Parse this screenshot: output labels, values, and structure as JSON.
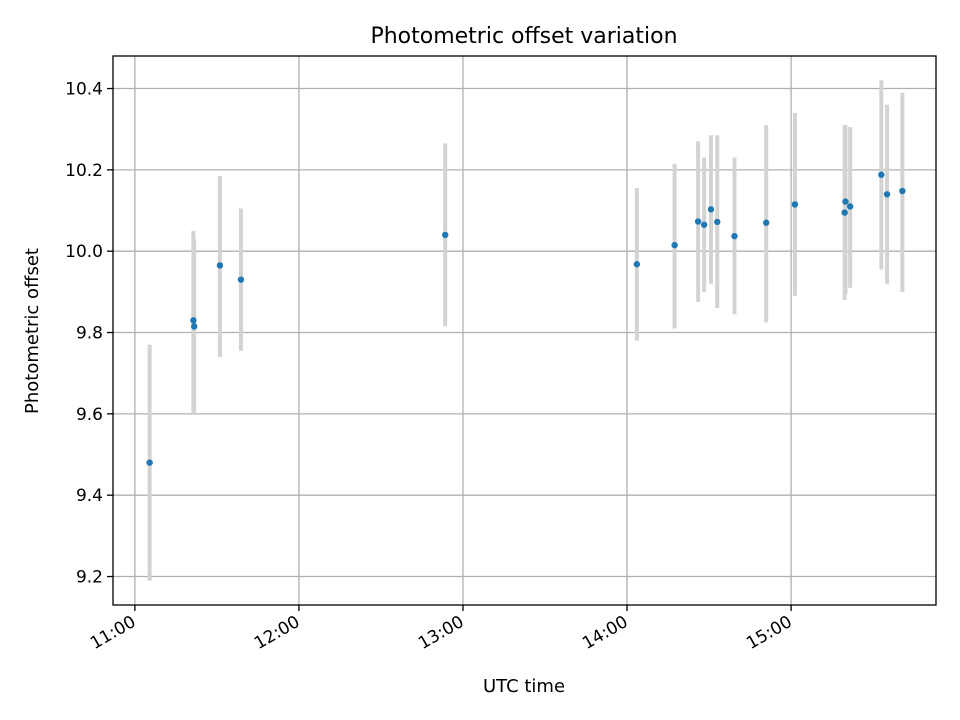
{
  "chart_data": {
    "type": "scatter",
    "title": "Photometric offset variation",
    "xlabel": "UTC time",
    "ylabel": "Photometric offset",
    "xlim": [
      "10:52",
      "15:53"
    ],
    "ylim": [
      9.13,
      10.48
    ],
    "x_ticks": [
      "11:00",
      "12:00",
      "13:00",
      "14:00",
      "15:00"
    ],
    "y_ticks": [
      9.2,
      9.4,
      9.6,
      9.8,
      10.0,
      10.2,
      10.4
    ],
    "grid": true,
    "legend": "none",
    "point_color": "#1f77b4",
    "errorbar_color": "#d3d3d3",
    "points": [
      {
        "x": "11:05.4",
        "y": 9.48,
        "ylo": 9.19,
        "yhi": 9.77
      },
      {
        "x": "11:21.4",
        "y": 9.83,
        "ylo": 9.6,
        "yhi": 10.05
      },
      {
        "x": "11:21.7",
        "y": 9.815,
        "ylo": 9.6,
        "yhi": 10.03
      },
      {
        "x": "11:31.1",
        "y": 9.965,
        "ylo": 9.74,
        "yhi": 10.185
      },
      {
        "x": "11:38.8",
        "y": 9.93,
        "ylo": 9.755,
        "yhi": 10.105
      },
      {
        "x": "12:53.5",
        "y": 10.04,
        "ylo": 9.815,
        "yhi": 10.265
      },
      {
        "x": "14:03.6",
        "y": 9.968,
        "ylo": 9.78,
        "yhi": 10.155
      },
      {
        "x": "14:17.4",
        "y": 10.015,
        "ylo": 9.81,
        "yhi": 10.215
      },
      {
        "x": "14:26.0",
        "y": 10.073,
        "ylo": 9.875,
        "yhi": 10.27
      },
      {
        "x": "14:28.2",
        "y": 10.065,
        "ylo": 9.9,
        "yhi": 10.23
      },
      {
        "x": "14:30.7",
        "y": 10.103,
        "ylo": 9.92,
        "yhi": 10.285
      },
      {
        "x": "14:33.0",
        "y": 10.072,
        "ylo": 9.86,
        "yhi": 10.285
      },
      {
        "x": "14:39.3",
        "y": 10.037,
        "ylo": 9.845,
        "yhi": 10.23
      },
      {
        "x": "14:50.9",
        "y": 10.07,
        "ylo": 9.825,
        "yhi": 10.31
      },
      {
        "x": "15:01.4",
        "y": 10.115,
        "ylo": 9.89,
        "yhi": 10.34
      },
      {
        "x": "15:19.6",
        "y": 10.095,
        "ylo": 9.88,
        "yhi": 10.31
      },
      {
        "x": "15:19.9",
        "y": 10.122,
        "ylo": 9.895,
        "yhi": 10.31
      },
      {
        "x": "15:21.6",
        "y": 10.11,
        "ylo": 9.91,
        "yhi": 10.305
      },
      {
        "x": "15:33.0",
        "y": 10.188,
        "ylo": 9.955,
        "yhi": 10.42
      },
      {
        "x": "15:35.1",
        "y": 10.14,
        "ylo": 9.92,
        "yhi": 10.36
      },
      {
        "x": "15:40.7",
        "y": 10.148,
        "ylo": 9.9,
        "yhi": 10.39
      }
    ]
  }
}
